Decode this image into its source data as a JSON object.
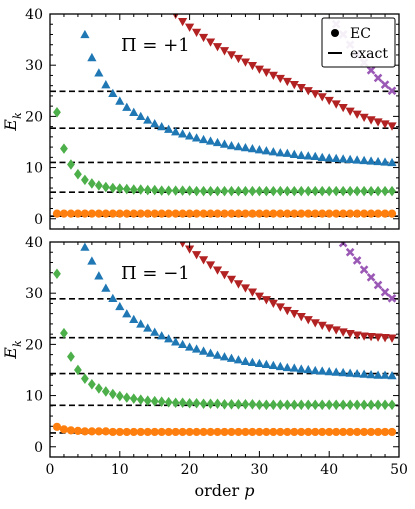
{
  "chart_data": [
    {
      "type": "scatter",
      "annotation": "Π = +1",
      "ylabel": "E_k",
      "xlabel": "",
      "xlim": [
        0,
        50
      ],
      "ylim": [
        -2,
        40
      ],
      "xticks": [
        0,
        10,
        20,
        30,
        40,
        50
      ],
      "yticks": [
        0,
        10,
        20,
        30,
        40
      ],
      "grid": false,
      "legend": {
        "placement": "top-right",
        "entries": [
          {
            "marker": "dot",
            "label": "EC"
          },
          {
            "marker": "dash",
            "label": "exact"
          }
        ]
      },
      "exact_levels": [
        0.5,
        5.2,
        11.0,
        17.7,
        24.9
      ],
      "series": [
        {
          "color": "#ff7f0e",
          "marker": "circle",
          "x_start": 1,
          "x_end": 49,
          "values": [
            1.0,
            1.0,
            1.0,
            1.0,
            1.0,
            1.0,
            1.0,
            1.0,
            1.0,
            1.0,
            1.0,
            1.0,
            1.0,
            1.0,
            1.0,
            1.0,
            1.0,
            1.0,
            1.0,
            1.0,
            1.0,
            1.0,
            1.0,
            1.0,
            1.0,
            1.0,
            1.0,
            1.0,
            1.0,
            1.0,
            1.0,
            1.0,
            1.0,
            1.0,
            1.0,
            1.0,
            1.0,
            1.0,
            1.0,
            1.0,
            1.0,
            1.0,
            1.0,
            1.0,
            1.0,
            1.0,
            1.0,
            1.0,
            1.0
          ]
        },
        {
          "color": "#4daf4a",
          "marker": "diamond",
          "x_start": 1,
          "x_end": 49,
          "values": [
            20.8,
            13.7,
            10.6,
            8.7,
            7.6,
            6.9,
            6.5,
            6.2,
            6.0,
            5.9,
            5.8,
            5.7,
            5.7,
            5.6,
            5.6,
            5.5,
            5.5,
            5.5,
            5.5,
            5.5,
            5.4,
            5.4,
            5.4,
            5.4,
            5.4,
            5.4,
            5.4,
            5.4,
            5.4,
            5.4,
            5.4,
            5.4,
            5.4,
            5.4,
            5.4,
            5.4,
            5.4,
            5.4,
            5.4,
            5.4,
            5.4,
            5.4,
            5.4,
            5.4,
            5.4,
            5.4,
            5.4,
            5.4,
            5.4
          ]
        },
        {
          "color": "#1f77b4",
          "marker": "triangle-up",
          "x_start": 5,
          "x_end": 49,
          "values": [
            36.0,
            31.5,
            28.5,
            26.2,
            24.5,
            23.0,
            21.8,
            20.8,
            20.0,
            19.3,
            18.6,
            18.0,
            17.5,
            17.0,
            16.6,
            16.2,
            15.8,
            15.5,
            15.2,
            14.9,
            14.6,
            14.3,
            14.1,
            13.9,
            13.7,
            13.5,
            13.3,
            13.1,
            12.9,
            12.8,
            12.6,
            12.4,
            12.3,
            12.2,
            12.0,
            11.9,
            11.8,
            11.7,
            11.6,
            11.5,
            11.4,
            11.3,
            11.2,
            11.1,
            11.0
          ]
        },
        {
          "color": "#b22222",
          "marker": "triangle-down",
          "x_start": 18,
          "x_end": 49,
          "values": [
            39.9,
            38.5,
            37.4,
            36.4,
            35.4,
            34.5,
            33.6,
            32.8,
            32.0,
            31.3,
            30.6,
            29.9,
            29.2,
            28.6,
            28.0,
            27.4,
            26.8,
            26.2,
            25.6,
            25.0,
            24.4,
            23.8,
            23.1,
            22.4,
            21.7,
            21.0,
            20.4,
            19.8,
            19.3,
            18.9,
            18.5,
            18.1
          ]
        },
        {
          "color": "#9b59b6",
          "marker": "x",
          "x_start": 41,
          "x_end": 49,
          "values": [
            38.0,
            36.0,
            34.0,
            32.0,
            30.5,
            29.0,
            27.5,
            26.2,
            25.0
          ]
        }
      ]
    },
    {
      "type": "scatter",
      "annotation": "Π = −1",
      "ylabel": "E_k",
      "xlabel": "order p",
      "xlim": [
        0,
        50
      ],
      "ylim": [
        -2,
        40
      ],
      "xticks": [
        0,
        10,
        20,
        30,
        40,
        50
      ],
      "yticks": [
        0,
        10,
        20,
        30,
        40
      ],
      "grid": false,
      "exact_levels": [
        2.7,
        8.1,
        14.3,
        21.3,
        28.9
      ],
      "series": [
        {
          "color": "#ff7f0e",
          "marker": "circle",
          "x_start": 1,
          "x_end": 49,
          "values": [
            3.9,
            3.4,
            3.2,
            3.1,
            3.0,
            3.0,
            3.0,
            3.0,
            2.9,
            2.9,
            2.9,
            2.9,
            2.9,
            2.9,
            2.9,
            2.9,
            2.9,
            2.9,
            2.9,
            2.9,
            2.9,
            2.9,
            2.9,
            2.9,
            2.9,
            2.9,
            2.9,
            2.9,
            2.9,
            2.9,
            2.9,
            2.9,
            2.9,
            2.9,
            2.9,
            2.9,
            2.9,
            2.9,
            2.9,
            2.9,
            2.9,
            2.9,
            2.9,
            2.9,
            2.9,
            2.9,
            2.9,
            2.9,
            2.9
          ]
        },
        {
          "color": "#4daf4a",
          "marker": "diamond",
          "x_start": 1,
          "x_end": 49,
          "values": [
            33.8,
            22.2,
            17.6,
            15.0,
            13.3,
            12.2,
            11.4,
            10.8,
            10.3,
            9.9,
            9.6,
            9.4,
            9.2,
            9.0,
            8.9,
            8.8,
            8.7,
            8.6,
            8.6,
            8.5,
            8.5,
            8.4,
            8.4,
            8.4,
            8.3,
            8.3,
            8.3,
            8.3,
            8.3,
            8.2,
            8.2,
            8.2,
            8.2,
            8.2,
            8.2,
            8.2,
            8.2,
            8.2,
            8.2,
            8.2,
            8.2,
            8.2,
            8.2,
            8.2,
            8.2,
            8.2,
            8.2,
            8.2,
            8.2
          ]
        },
        {
          "color": "#1f77b4",
          "marker": "triangle-up",
          "x_start": 5,
          "x_end": 49,
          "values": [
            39.0,
            36.3,
            33.4,
            31.0,
            29.0,
            27.4,
            26.0,
            24.9,
            24.0,
            23.2,
            22.4,
            21.7,
            21.1,
            20.5,
            20.0,
            19.5,
            19.1,
            18.7,
            18.3,
            17.9,
            17.6,
            17.3,
            17.0,
            16.7,
            16.5,
            16.3,
            16.1,
            15.9,
            15.7,
            15.5,
            15.4,
            15.2,
            15.1,
            14.9,
            14.8,
            14.7,
            14.6,
            14.5,
            14.4,
            14.3,
            14.2,
            14.1,
            14.0,
            14.0,
            13.9
          ]
        },
        {
          "color": "#b22222",
          "marker": "triangle-down",
          "x_start": 19,
          "x_end": 49,
          "values": [
            39.8,
            38.6,
            37.5,
            36.5,
            35.5,
            34.5,
            33.6,
            32.7,
            31.8,
            31.0,
            30.2,
            29.4,
            28.7,
            28.0,
            27.3,
            26.6,
            26.0,
            25.4,
            24.8,
            24.2,
            23.7,
            23.2,
            22.8,
            22.4,
            22.1,
            21.8,
            21.6,
            21.5,
            21.4,
            21.3,
            21.2
          ]
        },
        {
          "color": "#9b59b6",
          "marker": "x",
          "x_start": 42,
          "x_end": 49,
          "values": [
            39.8,
            38.0,
            36.4,
            34.6,
            33.1,
            31.6,
            30.2,
            29.0
          ]
        }
      ]
    }
  ]
}
